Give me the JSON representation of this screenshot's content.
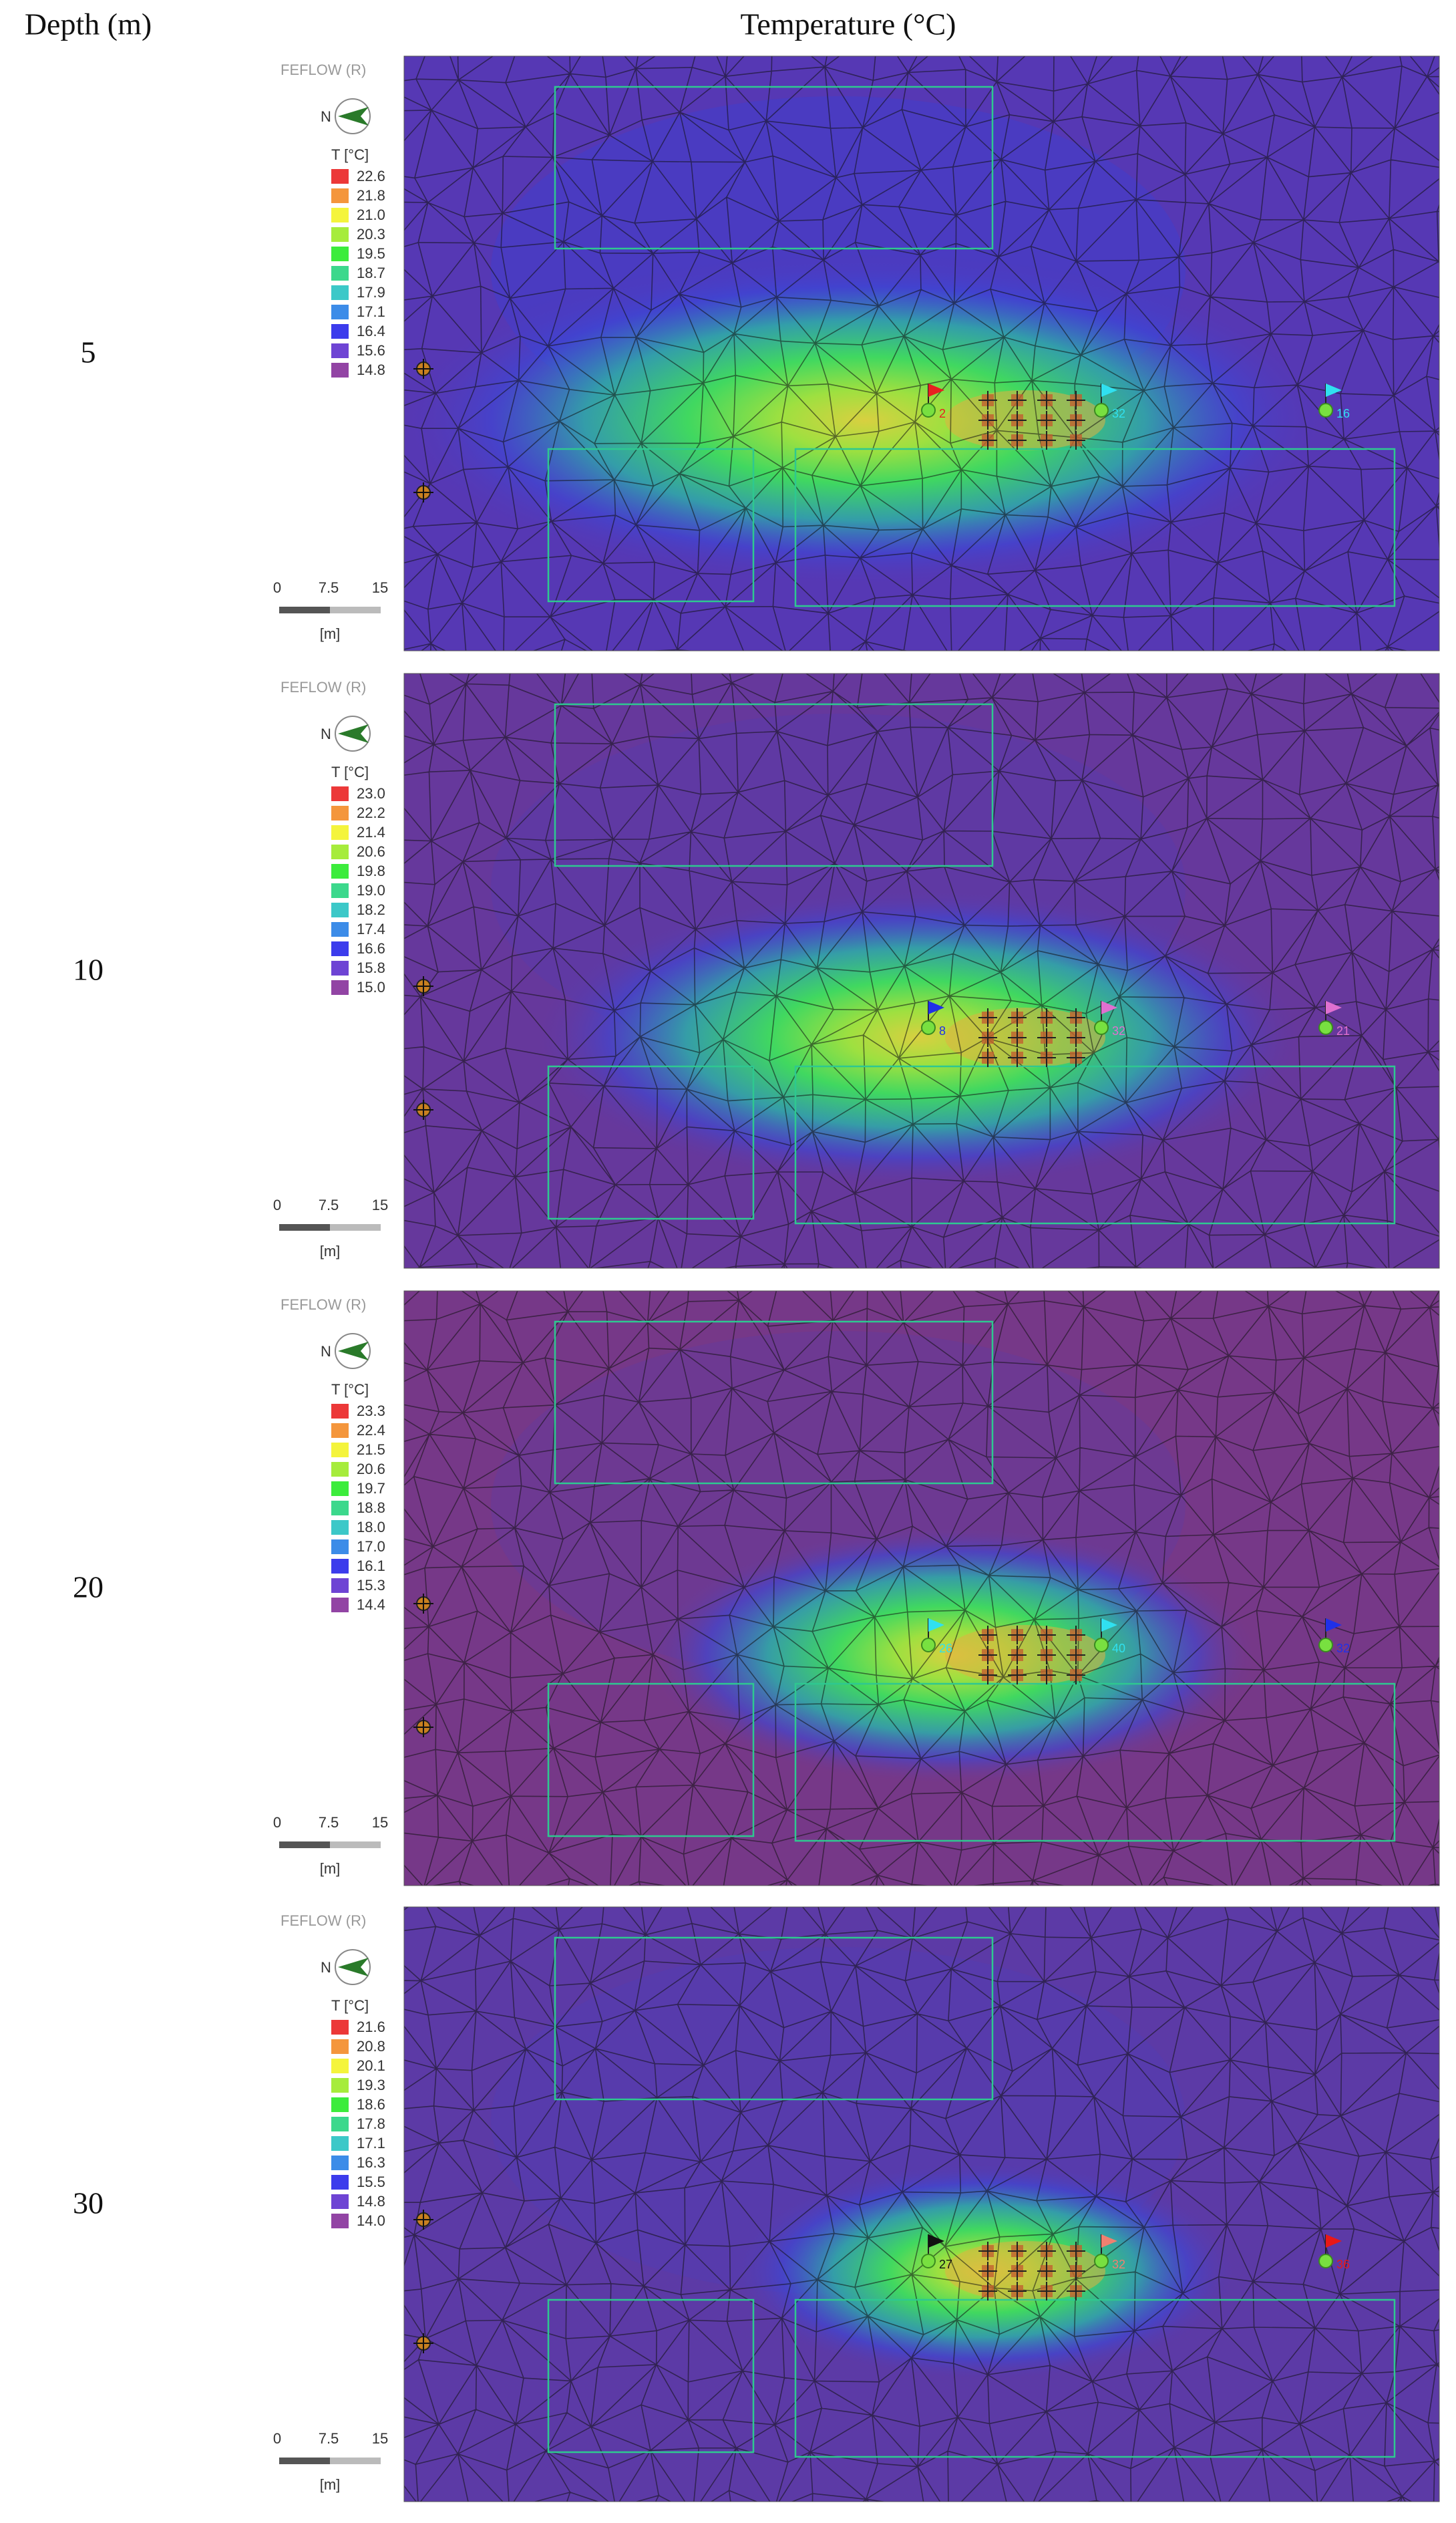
{
  "header": {
    "depth": "Depth (m)",
    "temperature": "Temperature (°C)"
  },
  "panels": [
    {
      "depth": "5",
      "logo": "FEFLOW (R)",
      "north": "N",
      "legend_title": "T [°C]",
      "map_color": "#5638b4",
      "legend": [
        {
          "label": "22.6",
          "color": "#ec3838"
        },
        {
          "label": "21.8",
          "color": "#f4963c"
        },
        {
          "label": "21.0",
          "color": "#f4f43c"
        },
        {
          "label": "20.3",
          "color": "#a6ec3c"
        },
        {
          "label": "19.5",
          "color": "#3cec3c"
        },
        {
          "label": "18.7",
          "color": "#3cd88c"
        },
        {
          "label": "17.9",
          "color": "#3cc8c8"
        },
        {
          "label": "17.1",
          "color": "#3c8ce8"
        },
        {
          "label": "16.4",
          "color": "#3c3cec"
        },
        {
          "label": "15.6",
          "color": "#6e44d4"
        },
        {
          "label": "14.8",
          "color": "#9244a4"
        }
      ],
      "scale": [
        "0",
        "7.5",
        "15"
      ],
      "scale_unit": "[m]",
      "observation_points": [
        {
          "label": "2",
          "color": "#e82020"
        },
        {
          "label": "32",
          "color": "#30e0f0"
        },
        {
          "label": "16",
          "color": "#30e0f0"
        }
      ]
    },
    {
      "depth": "10",
      "logo": "FEFLOW (R)",
      "north": "N",
      "legend_title": "T [°C]",
      "map_color": "#66389c",
      "legend": [
        {
          "label": "23.0",
          "color": "#ec3838"
        },
        {
          "label": "22.2",
          "color": "#f4963c"
        },
        {
          "label": "21.4",
          "color": "#f4f43c"
        },
        {
          "label": "20.6",
          "color": "#a6ec3c"
        },
        {
          "label": "19.8",
          "color": "#3cec3c"
        },
        {
          "label": "19.0",
          "color": "#3cd88c"
        },
        {
          "label": "18.2",
          "color": "#3cc8c8"
        },
        {
          "label": "17.4",
          "color": "#3c8ce8"
        },
        {
          "label": "16.6",
          "color": "#3c3cec"
        },
        {
          "label": "15.8",
          "color": "#6e44d4"
        },
        {
          "label": "15.0",
          "color": "#9244a4"
        }
      ],
      "scale": [
        "0",
        "7.5",
        "15"
      ],
      "scale_unit": "[m]",
      "observation_points": [
        {
          "label": "8",
          "color": "#2030e8"
        },
        {
          "label": "32",
          "color": "#e070d0"
        },
        {
          "label": "21",
          "color": "#e070d0"
        }
      ]
    },
    {
      "depth": "20",
      "logo": "FEFLOW (R)",
      "north": "N",
      "legend_title": "T [°C]",
      "map_color": "#763888",
      "legend": [
        {
          "label": "23.3",
          "color": "#ec3838"
        },
        {
          "label": "22.4",
          "color": "#f4963c"
        },
        {
          "label": "21.5",
          "color": "#f4f43c"
        },
        {
          "label": "20.6",
          "color": "#a6ec3c"
        },
        {
          "label": "19.7",
          "color": "#3cec3c"
        },
        {
          "label": "18.8",
          "color": "#3cd88c"
        },
        {
          "label": "18.0",
          "color": "#3cc8c8"
        },
        {
          "label": "17.0",
          "color": "#3c8ce8"
        },
        {
          "label": "16.1",
          "color": "#3c3cec"
        },
        {
          "label": "15.3",
          "color": "#6e44d4"
        },
        {
          "label": "14.4",
          "color": "#9244a4"
        }
      ],
      "scale": [
        "0",
        "7.5",
        "15"
      ],
      "scale_unit": "[m]",
      "observation_points": [
        {
          "label": "26",
          "color": "#30e0f0"
        },
        {
          "label": "40",
          "color": "#30e0f0"
        },
        {
          "label": "32",
          "color": "#2030e8"
        }
      ]
    },
    {
      "depth": "30",
      "logo": "FEFLOW (R)",
      "north": "N",
      "legend_title": "T [°C]",
      "map_color": "#5c3aa6",
      "legend": [
        {
          "label": "21.6",
          "color": "#ec3838"
        },
        {
          "label": "20.8",
          "color": "#f4963c"
        },
        {
          "label": "20.1",
          "color": "#f4f43c"
        },
        {
          "label": "19.3",
          "color": "#a6ec3c"
        },
        {
          "label": "18.6",
          "color": "#3cec3c"
        },
        {
          "label": "17.8",
          "color": "#3cd88c"
        },
        {
          "label": "17.1",
          "color": "#3cc8c8"
        },
        {
          "label": "16.3",
          "color": "#3c8ce8"
        },
        {
          "label": "15.5",
          "color": "#3c3cec"
        },
        {
          "label": "14.8",
          "color": "#6e44d4"
        },
        {
          "label": "14.0",
          "color": "#9244a4"
        }
      ],
      "scale": [
        "0",
        "7.5",
        "15"
      ],
      "scale_unit": "[m]",
      "observation_points": [
        {
          "label": "27",
          "color": "#111111"
        },
        {
          "label": "32",
          "color": "#f08070"
        },
        {
          "label": "36",
          "color": "#e81818"
        }
      ]
    }
  ]
}
